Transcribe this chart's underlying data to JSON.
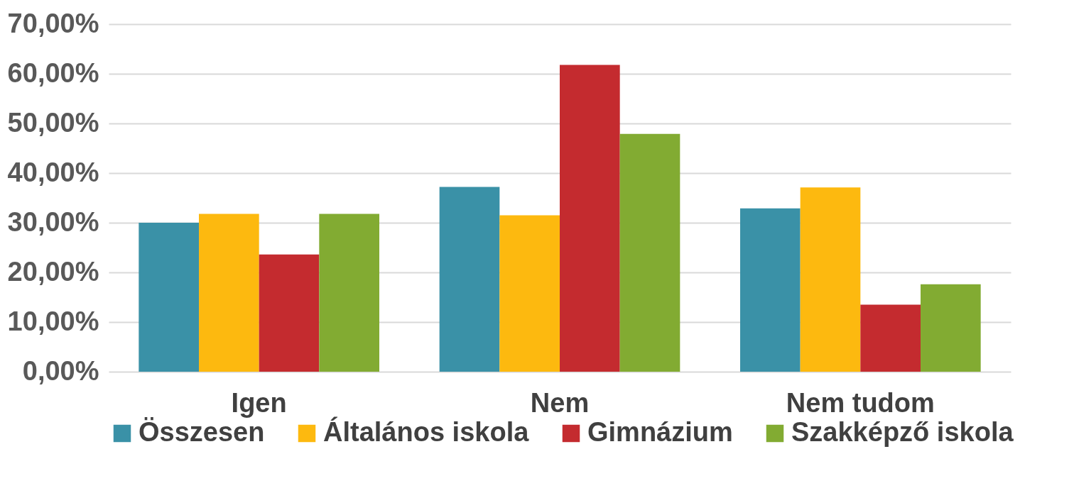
{
  "chart_data": {
    "type": "bar",
    "categories": [
      "Igen",
      "Nem",
      "Nem tudom"
    ],
    "series": [
      {
        "name": "Összesen",
        "color": "#3a91a7",
        "values": [
          30.0,
          37.2,
          32.9
        ]
      },
      {
        "name": "Általános iskola",
        "color": "#fdb90f",
        "values": [
          31.8,
          31.5,
          37.1
        ]
      },
      {
        "name": "Gimnázium",
        "color": "#c42b2f",
        "values": [
          23.6,
          61.8,
          13.5
        ]
      },
      {
        "name": "Szakképző iskola",
        "color": "#82ab32",
        "values": [
          31.8,
          47.9,
          17.6
        ]
      }
    ],
    "ylim": [
      0,
      70
    ],
    "yticks": [
      {
        "value": 0,
        "label": "0,00%"
      },
      {
        "value": 10,
        "label": "10,00%"
      },
      {
        "value": 20,
        "label": "20,00%"
      },
      {
        "value": 30,
        "label": "30,00%"
      },
      {
        "value": 40,
        "label": "40,00%"
      },
      {
        "value": 50,
        "label": "50,00%"
      },
      {
        "value": 60,
        "label": "60,00%"
      },
      {
        "value": 70,
        "label": "70,00%"
      }
    ],
    "grid": "y",
    "legend": "bottom"
  }
}
